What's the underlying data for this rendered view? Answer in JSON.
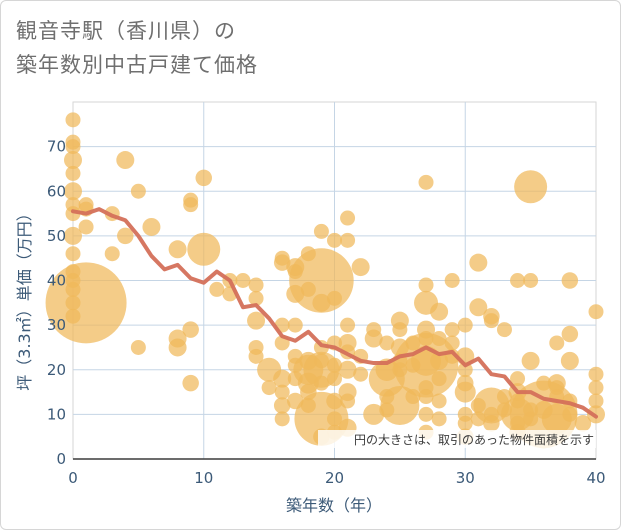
{
  "title_line1": "観音寺駅（香川県）の",
  "title_line2": "築年数別中古戸建て価格",
  "chart_data": {
    "type": "scatter",
    "title": "観音寺駅（香川県）の築年数別中古戸建て価格",
    "xlabel": "築年数（年）",
    "ylabel": "坪（3.3㎡）単価（万円）",
    "xlim": [
      0,
      40
    ],
    "ylim": [
      0,
      80
    ],
    "xticks": [
      "0",
      "10",
      "20",
      "30",
      "40"
    ],
    "yticks": [
      "0",
      "10",
      "20",
      "30",
      "40",
      "50",
      "60",
      "70"
    ],
    "note": "円の大きさは、取引のあった物件面積を示す",
    "colors": {
      "bubble": "#f0b85a",
      "line": "#d4705a",
      "grid": "#c5d5e5"
    },
    "bubbles": [
      [
        0,
        76,
        1
      ],
      [
        0,
        71,
        1
      ],
      [
        0,
        70,
        1
      ],
      [
        0,
        67,
        1.2
      ],
      [
        0,
        64,
        1
      ],
      [
        0,
        60,
        1.2
      ],
      [
        0,
        57,
        1
      ],
      [
        0,
        55,
        1
      ],
      [
        0,
        50,
        1.2
      ],
      [
        0,
        46,
        1
      ],
      [
        0,
        42,
        1
      ],
      [
        0,
        40,
        1
      ],
      [
        0,
        38,
        1
      ],
      [
        0,
        35,
        1
      ],
      [
        0,
        32,
        1
      ],
      [
        1,
        57,
        1
      ],
      [
        1,
        56,
        1
      ],
      [
        1,
        52,
        1
      ],
      [
        1,
        35,
        5.4
      ],
      [
        3,
        55,
        1
      ],
      [
        3,
        46,
        1
      ],
      [
        4,
        67,
        1.2
      ],
      [
        4,
        50,
        1.1
      ],
      [
        5,
        60,
        1
      ],
      [
        5,
        25,
        1
      ],
      [
        6,
        52,
        1.2
      ],
      [
        8,
        47,
        1.2
      ],
      [
        8,
        27,
        1.2
      ],
      [
        8,
        25,
        1.2
      ],
      [
        9,
        58,
        1
      ],
      [
        9,
        57,
        1
      ],
      [
        9,
        29,
        1.1
      ],
      [
        9,
        17,
        1.1
      ],
      [
        10,
        63,
        1.1
      ],
      [
        10,
        47,
        2.2
      ],
      [
        11,
        38,
        1
      ],
      [
        12,
        40,
        1
      ],
      [
        12,
        37,
        1
      ],
      [
        13,
        40,
        1
      ],
      [
        14,
        39,
        1
      ],
      [
        14,
        36,
        1
      ],
      [
        14,
        31,
        1.2
      ],
      [
        14,
        25,
        1
      ],
      [
        14,
        23,
        1
      ],
      [
        15,
        20,
        1.6
      ],
      [
        15,
        16,
        1
      ],
      [
        16,
        45,
        1
      ],
      [
        16,
        44,
        1.1
      ],
      [
        16,
        30,
        1
      ],
      [
        16,
        26,
        1
      ],
      [
        16,
        18,
        1.2
      ],
      [
        16,
        15,
        1
      ],
      [
        16,
        12,
        1.1
      ],
      [
        16,
        9,
        1
      ],
      [
        17,
        43,
        1.2
      ],
      [
        17,
        42,
        1
      ],
      [
        17,
        37,
        1.2
      ],
      [
        17,
        30,
        1
      ],
      [
        17,
        23,
        1
      ],
      [
        17,
        21,
        1
      ],
      [
        17,
        18,
        1
      ],
      [
        17,
        13,
        1.1
      ],
      [
        18,
        46,
        1
      ],
      [
        18,
        38,
        1
      ],
      [
        18,
        22,
        1.2
      ],
      [
        18,
        20,
        2
      ],
      [
        18,
        17,
        1.4
      ],
      [
        18,
        15,
        1.1
      ],
      [
        18,
        12,
        1
      ],
      [
        19,
        51,
        1
      ],
      [
        19,
        40,
        4.3
      ],
      [
        19,
        35,
        1.2
      ],
      [
        19,
        25,
        1
      ],
      [
        19,
        22,
        1
      ],
      [
        19,
        20,
        2.4
      ],
      [
        19,
        17,
        1
      ],
      [
        19,
        9,
        3.6
      ],
      [
        19,
        5,
        1.1
      ],
      [
        20,
        49,
        1
      ],
      [
        20,
        36,
        1
      ],
      [
        20,
        26,
        1
      ],
      [
        20,
        21,
        1
      ],
      [
        20,
        18,
        1
      ],
      [
        20,
        13,
        1.1
      ],
      [
        20,
        9,
        1
      ],
      [
        20,
        6,
        1
      ],
      [
        21,
        54,
        1
      ],
      [
        21,
        49,
        1
      ],
      [
        21,
        30,
        1
      ],
      [
        21,
        26,
        1.2
      ],
      [
        21,
        24,
        1
      ],
      [
        21,
        20,
        1.2
      ],
      [
        21,
        15,
        1.2
      ],
      [
        21,
        13,
        1
      ],
      [
        21,
        7,
        1.2
      ],
      [
        22,
        43,
        1.2
      ],
      [
        22,
        23,
        1
      ],
      [
        22,
        19,
        1
      ],
      [
        23,
        29,
        1
      ],
      [
        23,
        27,
        1.2
      ],
      [
        23,
        10,
        1.4
      ],
      [
        24,
        26,
        1
      ],
      [
        24,
        20,
        1.5
      ],
      [
        24,
        18,
        2.4
      ],
      [
        24,
        14,
        1
      ],
      [
        24,
        11,
        1
      ],
      [
        25,
        31,
        1.2
      ],
      [
        25,
        29,
        1
      ],
      [
        25,
        25,
        1.2
      ],
      [
        25,
        22,
        1
      ],
      [
        25,
        20,
        1
      ],
      [
        25,
        12,
        2.6
      ],
      [
        26,
        26,
        1
      ],
      [
        26,
        21,
        1
      ],
      [
        26,
        14,
        1
      ],
      [
        27,
        62,
        1
      ],
      [
        27,
        39,
        1
      ],
      [
        27,
        35,
        1.6
      ],
      [
        27,
        29,
        1.2
      ],
      [
        27,
        27,
        1
      ],
      [
        27,
        22,
        2
      ],
      [
        27,
        21,
        4.3
      ],
      [
        27,
        16,
        1
      ],
      [
        27,
        14,
        1
      ],
      [
        27,
        10,
        1
      ],
      [
        27,
        6,
        1
      ],
      [
        28,
        33,
        1.2
      ],
      [
        28,
        27,
        1
      ],
      [
        28,
        22,
        1.2
      ],
      [
        28,
        18,
        1
      ],
      [
        28,
        13,
        1
      ],
      [
        28,
        9,
        1
      ],
      [
        29,
        40,
        1
      ],
      [
        29,
        29,
        1
      ],
      [
        29,
        26,
        1
      ],
      [
        29,
        23,
        1
      ],
      [
        30,
        30,
        1
      ],
      [
        30,
        23,
        1.2
      ],
      [
        30,
        20,
        1
      ],
      [
        30,
        17,
        1.1
      ],
      [
        30,
        15,
        1.4
      ],
      [
        30,
        10,
        1
      ],
      [
        30,
        8,
        1
      ],
      [
        30,
        5,
        1.1
      ],
      [
        31,
        44,
        1.2
      ],
      [
        31,
        34,
        1.2
      ],
      [
        31,
        12,
        1
      ],
      [
        31,
        9,
        1
      ],
      [
        32,
        32,
        1.1
      ],
      [
        32,
        31,
        1
      ],
      [
        32,
        12,
        2.4
      ],
      [
        32,
        10,
        1
      ],
      [
        32,
        8,
        1.1
      ],
      [
        33,
        29,
        1
      ],
      [
        33,
        14,
        1
      ],
      [
        33,
        11,
        1
      ],
      [
        34,
        40,
        1
      ],
      [
        34,
        18,
        1
      ],
      [
        34,
        15,
        1.2
      ],
      [
        34,
        13,
        1
      ],
      [
        34,
        10,
        2.2
      ],
      [
        34,
        8,
        1
      ],
      [
        34,
        6,
        1.1
      ],
      [
        35,
        61,
        2.2
      ],
      [
        35,
        40,
        1
      ],
      [
        35,
        22,
        1.2
      ],
      [
        35,
        11,
        1
      ],
      [
        35,
        9,
        1
      ],
      [
        36,
        17,
        1
      ],
      [
        36,
        11,
        1.2
      ],
      [
        36,
        10,
        4.5
      ],
      [
        37,
        26,
        1
      ],
      [
        37,
        17,
        1.2
      ],
      [
        37,
        16,
        1
      ],
      [
        37,
        14,
        1
      ],
      [
        37,
        9,
        2
      ],
      [
        38,
        40,
        1.1
      ],
      [
        38,
        28,
        1.1
      ],
      [
        38,
        22,
        1.2
      ],
      [
        38,
        13,
        1
      ],
      [
        38,
        10,
        1
      ],
      [
        39,
        8,
        1.1
      ],
      [
        40,
        33,
        1
      ],
      [
        40,
        19,
        1
      ],
      [
        40,
        16,
        1
      ],
      [
        40,
        13,
        1
      ],
      [
        40,
        10,
        1.2
      ]
    ],
    "trend": {
      "x": [
        0,
        1,
        2,
        3,
        4,
        5,
        6,
        7,
        8,
        9,
        10,
        11,
        12,
        13,
        14,
        15,
        16,
        17,
        18,
        19,
        20,
        21,
        22,
        23,
        24,
        25,
        26,
        27,
        28,
        29,
        30,
        31,
        32,
        33,
        34,
        35,
        36,
        37,
        38,
        39,
        40
      ],
      "y": [
        55.5,
        55,
        56,
        54.5,
        53.5,
        50,
        45.5,
        42.5,
        43.5,
        40.5,
        39.5,
        42,
        40,
        34,
        34.5,
        31.5,
        27.5,
        26.5,
        28.5,
        25.5,
        25,
        23.5,
        22,
        21.5,
        21.5,
        23,
        23.5,
        25,
        23.5,
        24,
        21,
        22.5,
        19,
        18.5,
        15,
        15,
        13.5,
        13,
        12.5,
        11.5,
        9.5
      ]
    }
  }
}
